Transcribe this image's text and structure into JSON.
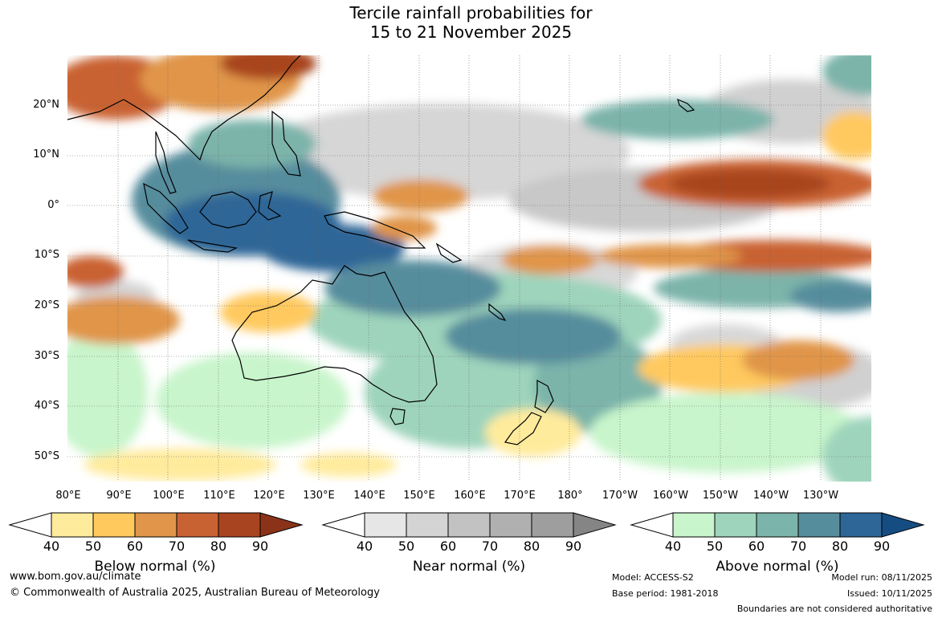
{
  "title": {
    "line1": "Tercile rainfall probabilities for",
    "line2": "15 to 21 November 2025"
  },
  "map": {
    "lat_labels": [
      "20°N",
      "10°N",
      "0°",
      "10°S",
      "20°S",
      "30°S",
      "40°S",
      "50°S"
    ],
    "lon_labels": [
      "80°E",
      "90°E",
      "100°E",
      "110°E",
      "120°E",
      "130°E",
      "140°E",
      "150°E",
      "160°E",
      "170°E",
      "180°",
      "170°W",
      "160°W",
      "150°W",
      "140°W",
      "130°W"
    ]
  },
  "colorbars": {
    "below": {
      "title": "Below normal (%)",
      "ticks": [
        "40",
        "50",
        "60",
        "70",
        "80",
        "90"
      ],
      "colors": [
        "#ffffff",
        "#ffeb9c",
        "#ffc95e",
        "#e0954a",
        "#c96233",
        "#a8441f",
        "#8a3318"
      ]
    },
    "near": {
      "title": "Near normal (%)",
      "ticks": [
        "40",
        "50",
        "60",
        "70",
        "80",
        "90"
      ],
      "colors": [
        "#ffffff",
        "#e6e6e6",
        "#d4d4d4",
        "#c2c2c2",
        "#b0b0b0",
        "#9e9e9e",
        "#858585"
      ]
    },
    "above": {
      "title": "Above normal (%)",
      "ticks": [
        "40",
        "50",
        "60",
        "70",
        "80",
        "90"
      ],
      "colors": [
        "#ffffff",
        "#c8f5cb",
        "#9ed4bc",
        "#7bb4aa",
        "#568d9d",
        "#2e6697",
        "#154d82"
      ]
    }
  },
  "footer": {
    "website": "www.bom.gov.au/climate",
    "copyright": "© Commonwealth of Australia 2025, Australian Bureau of Meteorology",
    "model": "Model: ACCESS-S2",
    "base_period": "Base period: 1981-2018",
    "model_run": "Model run: 08/11/2025",
    "issued": "Issued: 10/11/2025",
    "disclaimer": "Boundaries are not considered authoritative"
  }
}
